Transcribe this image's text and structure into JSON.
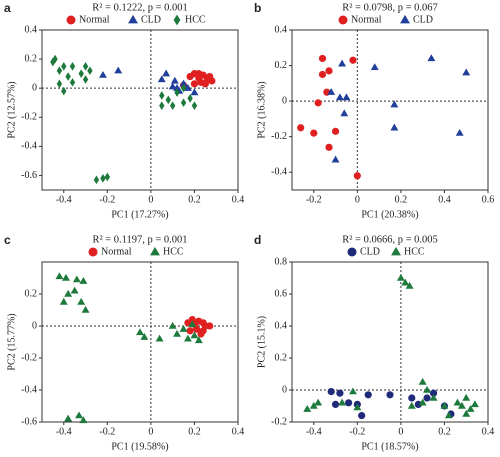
{
  "chart_data": [
    {
      "type": "scatter",
      "panel_label": "a",
      "title": "R² = 0.1222, p = 0.001",
      "x_label": "PC1 (17.27%)",
      "y_label": "PC2 (12.57%)",
      "xlim": [
        -0.5,
        0.4
      ],
      "xticks": [
        -0.4,
        -0.2,
        0,
        0.2,
        0.4
      ],
      "ylim": [
        -0.7,
        0.4
      ],
      "yticks": [
        -0.6,
        -0.4,
        -0.2,
        0,
        0.2,
        0.4
      ],
      "series": [
        {
          "name": "Normal",
          "color": "#e02020",
          "marker": "circle",
          "x": [
            0.18,
            0.2,
            0.22,
            0.24,
            0.26,
            0.25,
            0.23,
            0.27,
            0.2,
            0.15,
            0.22,
            0.28
          ],
          "y": [
            0.08,
            0.1,
            0.07,
            0.09,
            0.06,
            0.03,
            0.04,
            0.08,
            0.03,
            0.02,
            0.1,
            0.05
          ]
        },
        {
          "name": "CLD",
          "color": "#1f3f9a",
          "marker": "triangle",
          "x": [
            -0.22,
            -0.15,
            0.05,
            0.1,
            0.12,
            0.13,
            0.15,
            0.17,
            0.2,
            0.07,
            0.11
          ],
          "y": [
            0.09,
            0.12,
            0.06,
            0.01,
            0.0,
            -0.02,
            0.03,
            0.0,
            -0.03,
            0.1,
            0.05
          ]
        },
        {
          "name": "HCC",
          "color": "#1e7a3c",
          "marker": "diamond",
          "x": [
            -0.45,
            -0.44,
            -0.42,
            -0.4,
            -0.38,
            -0.36,
            -0.32,
            -0.3,
            -0.28,
            -0.42,
            -0.4,
            -0.36,
            -0.3,
            -0.25,
            -0.22,
            -0.2,
            0.05,
            0.08,
            0.12,
            0.1,
            0.05,
            0.15,
            0.18,
            0.2,
            0.15
          ],
          "y": [
            0.18,
            0.2,
            0.12,
            0.15,
            0.08,
            0.15,
            0.1,
            0.15,
            0.12,
            0.03,
            -0.02,
            0.04,
            0.06,
            -0.63,
            -0.62,
            -0.61,
            -0.05,
            -0.08,
            -0.03,
            -0.12,
            -0.12,
            -0.1,
            -0.07,
            -0.12,
            0.0
          ]
        }
      ]
    },
    {
      "type": "scatter",
      "panel_label": "b",
      "title": "R² = 0.0798, p = 0.067",
      "x_label": "PC1 (20.38%)",
      "y_label": "PC2 (16.38%)",
      "xlim": [
        -0.3,
        0.6
      ],
      "xticks": [
        -0.2,
        0,
        0.2,
        0.4,
        0.6
      ],
      "ylim": [
        -0.5,
        0.4
      ],
      "yticks": [
        -0.4,
        -0.2,
        0,
        0.2,
        0.4
      ],
      "series": [
        {
          "name": "Normal",
          "color": "#e02020",
          "marker": "circle",
          "x": [
            -0.16,
            -0.16,
            -0.13,
            -0.14,
            -0.18,
            -0.26,
            -0.2,
            -0.1,
            -0.13,
            -0.02,
            0.0
          ],
          "y": [
            0.24,
            0.15,
            0.17,
            0.05,
            -0.01,
            -0.15,
            -0.18,
            -0.17,
            -0.26,
            0.23,
            -0.42
          ]
        },
        {
          "name": "CLD",
          "color": "#1f3f9a",
          "marker": "triangle",
          "x": [
            -0.12,
            -0.08,
            -0.05,
            -0.07,
            0.08,
            0.34,
            0.5,
            0.17,
            0.47,
            0.17,
            -0.06,
            -0.1
          ],
          "y": [
            0.05,
            0.02,
            0.02,
            0.21,
            0.19,
            0.24,
            0.16,
            -0.02,
            -0.18,
            -0.15,
            -0.07,
            -0.33
          ]
        }
      ]
    },
    {
      "type": "scatter",
      "panel_label": "c",
      "title": "R² = 0.1197, p = 0.001",
      "x_label": "PC1 (19.58%)",
      "y_label": "PC2 (15.77%)",
      "xlim": [
        -0.5,
        0.4
      ],
      "xticks": [
        -0.4,
        -0.2,
        0,
        0.2,
        0.4
      ],
      "ylim": [
        -0.6,
        0.4
      ],
      "yticks": [
        -0.6,
        -0.4,
        -0.2,
        0,
        0.2
      ],
      "series": [
        {
          "name": "Normal",
          "color": "#e02020",
          "marker": "circle",
          "x": [
            0.17,
            0.2,
            0.22,
            0.24,
            0.25,
            0.21,
            0.24,
            0.19,
            0.27,
            0.23,
            0.18
          ],
          "y": [
            0.02,
            0.01,
            0.03,
            0.02,
            0.0,
            -0.02,
            -0.03,
            0.04,
            0.0,
            -0.05,
            -0.03
          ]
        },
        {
          "name": "HCC",
          "color": "#1e7a3c",
          "marker": "triangle",
          "x": [
            -0.42,
            -0.39,
            -0.34,
            -0.31,
            -0.38,
            -0.35,
            -0.4,
            -0.32,
            -0.3,
            -0.05,
            -0.03,
            0.04,
            0.1,
            0.12,
            0.15,
            0.17,
            0.2,
            0.22,
            0.19,
            -0.38,
            -0.33,
            -0.31
          ],
          "y": [
            0.31,
            0.3,
            0.29,
            0.28,
            0.2,
            0.22,
            0.15,
            0.15,
            0.1,
            -0.04,
            -0.07,
            -0.08,
            0.0,
            -0.05,
            -0.02,
            -0.08,
            -0.06,
            -0.09,
            0.01,
            -0.58,
            -0.56,
            -0.59
          ]
        }
      ]
    },
    {
      "type": "scatter",
      "panel_label": "d",
      "title": "R² = 0.0666, p = 0.005",
      "x_label": "PC1 (18.57%)",
      "y_label": "PC2 (15.1%)",
      "xlim": [
        -0.5,
        0.4
      ],
      "xticks": [
        -0.4,
        -0.2,
        0,
        0.2,
        0.4
      ],
      "ylim": [
        -0.2,
        0.8
      ],
      "yticks": [
        -0.2,
        0,
        0.2,
        0.4,
        0.6,
        0.8
      ],
      "series": [
        {
          "name": "CLD",
          "color": "#1f2a7a",
          "marker": "circle",
          "x": [
            -0.32,
            -0.28,
            -0.24,
            -0.2,
            -0.18,
            -0.15,
            -0.3,
            -0.05,
            0.05,
            0.08,
            0.12,
            0.15,
            0.2,
            0.23
          ],
          "y": [
            -0.01,
            -0.02,
            -0.08,
            -0.09,
            -0.16,
            -0.03,
            -0.09,
            -0.03,
            -0.05,
            -0.09,
            -0.05,
            -0.02,
            -0.1,
            -0.15
          ]
        },
        {
          "name": "HCC",
          "color": "#1e7a3c",
          "marker": "triangle",
          "x": [
            -0.43,
            -0.4,
            -0.38,
            -0.27,
            -0.22,
            -0.2,
            0.0,
            0.02,
            0.04,
            0.05,
            0.1,
            0.1,
            0.12,
            0.15,
            0.2,
            0.22,
            0.26,
            0.28,
            0.3,
            0.32,
            0.34,
            0.3
          ],
          "y": [
            -0.12,
            -0.1,
            -0.08,
            -0.08,
            -0.01,
            -0.11,
            0.7,
            0.67,
            0.65,
            -0.1,
            -0.08,
            0.05,
            0.0,
            -0.05,
            -0.1,
            -0.16,
            -0.08,
            -0.1,
            -0.05,
            -0.12,
            -0.09,
            -0.15
          ]
        }
      ]
    }
  ]
}
